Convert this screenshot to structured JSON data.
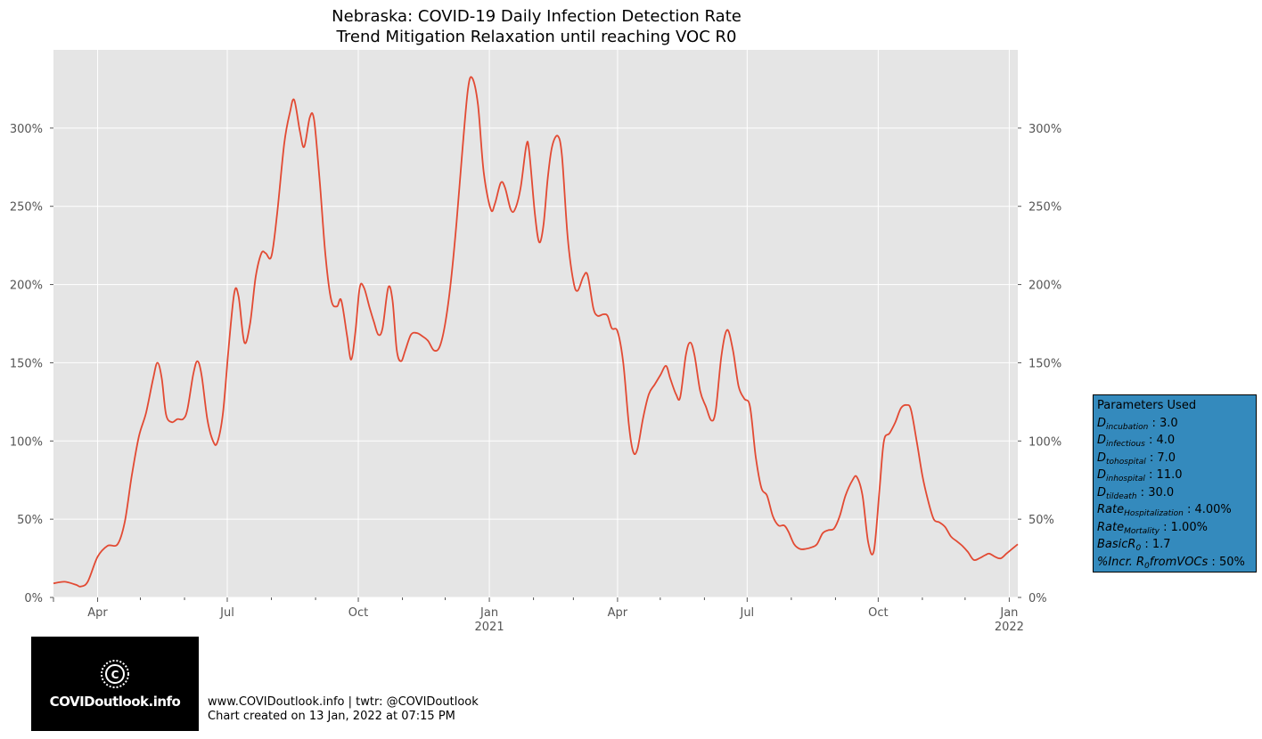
{
  "chart_data": {
    "type": "line",
    "title": "Nebraska: COVID-19 Daily Infection Detection Rate",
    "subtitle": "Trend Mitigation Relaxation until reaching VOC R0",
    "ylim": [
      0,
      3.5
    ],
    "y_ticks": [
      {
        "value": 0,
        "label": "0%"
      },
      {
        "value": 0.5,
        "label": "50%"
      },
      {
        "value": 1.0,
        "label": "100%"
      },
      {
        "value": 1.5,
        "label": "150%"
      },
      {
        "value": 2.0,
        "label": "200%"
      },
      {
        "value": 2.5,
        "label": "250%"
      },
      {
        "value": 3.0,
        "label": "300%"
      }
    ],
    "xlim": [
      "2020-03-01",
      "2022-01-07"
    ],
    "x_major_ticks": [
      {
        "date": "2020-04-01",
        "label": "Apr",
        "year": ""
      },
      {
        "date": "2020-07-01",
        "label": "Jul",
        "year": ""
      },
      {
        "date": "2020-10-01",
        "label": "Oct",
        "year": ""
      },
      {
        "date": "2021-01-01",
        "label": "Jan",
        "year": "2021"
      },
      {
        "date": "2021-04-01",
        "label": "Apr",
        "year": ""
      },
      {
        "date": "2021-07-01",
        "label": "Jul",
        "year": ""
      },
      {
        "date": "2021-10-01",
        "label": "Oct",
        "year": ""
      },
      {
        "date": "2022-01-01",
        "label": "Jan",
        "year": "2022"
      }
    ],
    "x_minor_ticks": [
      "2020-05-01",
      "2020-06-01",
      "2020-08-01",
      "2020-09-01",
      "2020-11-01",
      "2020-12-01",
      "2021-02-01",
      "2021-03-01",
      "2021-05-01",
      "2021-06-01",
      "2021-08-01",
      "2021-09-01",
      "2021-11-01",
      "2021-12-01"
    ],
    "grid": true,
    "series": [
      {
        "color": "#e24a33",
        "points": [
          [
            "2020-03-01",
            0.09
          ],
          [
            "2020-03-09",
            0.1
          ],
          [
            "2020-03-17",
            0.08
          ],
          [
            "2020-03-20",
            0.07
          ],
          [
            "2020-03-25",
            0.1
          ],
          [
            "2020-04-01",
            0.26
          ],
          [
            "2020-04-08",
            0.33
          ],
          [
            "2020-04-15",
            0.34
          ],
          [
            "2020-04-20",
            0.48
          ],
          [
            "2020-04-25",
            0.78
          ],
          [
            "2020-04-30",
            1.03
          ],
          [
            "2020-05-05",
            1.18
          ],
          [
            "2020-05-10",
            1.4
          ],
          [
            "2020-05-13",
            1.5
          ],
          [
            "2020-05-16",
            1.4
          ],
          [
            "2020-05-19",
            1.17
          ],
          [
            "2020-05-23",
            1.12
          ],
          [
            "2020-05-27",
            1.14
          ],
          [
            "2020-05-31",
            1.14
          ],
          [
            "2020-06-03",
            1.2
          ],
          [
            "2020-06-07",
            1.42
          ],
          [
            "2020-06-10",
            1.51
          ],
          [
            "2020-06-13",
            1.42
          ],
          [
            "2020-06-17",
            1.14
          ],
          [
            "2020-06-21",
            1.0
          ],
          [
            "2020-06-24",
            0.99
          ],
          [
            "2020-06-28",
            1.18
          ],
          [
            "2020-07-02",
            1.6
          ],
          [
            "2020-07-06",
            1.95
          ],
          [
            "2020-07-09",
            1.92
          ],
          [
            "2020-07-13",
            1.63
          ],
          [
            "2020-07-17",
            1.75
          ],
          [
            "2020-07-21",
            2.05
          ],
          [
            "2020-07-25",
            2.2
          ],
          [
            "2020-07-28",
            2.2
          ],
          [
            "2020-08-01",
            2.18
          ],
          [
            "2020-08-05",
            2.45
          ],
          [
            "2020-08-10",
            2.9
          ],
          [
            "2020-08-14",
            3.1
          ],
          [
            "2020-08-17",
            3.18
          ],
          [
            "2020-08-21",
            2.98
          ],
          [
            "2020-08-24",
            2.88
          ],
          [
            "2020-08-28",
            3.07
          ],
          [
            "2020-08-31",
            3.05
          ],
          [
            "2020-09-04",
            2.65
          ],
          [
            "2020-09-08",
            2.18
          ],
          [
            "2020-09-12",
            1.9
          ],
          [
            "2020-09-16",
            1.86
          ],
          [
            "2020-09-19",
            1.9
          ],
          [
            "2020-09-23",
            1.68
          ],
          [
            "2020-09-26",
            1.52
          ],
          [
            "2020-09-29",
            1.7
          ],
          [
            "2020-10-02",
            1.98
          ],
          [
            "2020-10-05",
            1.98
          ],
          [
            "2020-10-09",
            1.85
          ],
          [
            "2020-10-12",
            1.76
          ],
          [
            "2020-10-15",
            1.68
          ],
          [
            "2020-10-18",
            1.72
          ],
          [
            "2020-10-22",
            1.98
          ],
          [
            "2020-10-25",
            1.9
          ],
          [
            "2020-10-28",
            1.58
          ],
          [
            "2020-10-31",
            1.51
          ],
          [
            "2020-11-03",
            1.58
          ],
          [
            "2020-11-07",
            1.68
          ],
          [
            "2020-11-11",
            1.69
          ],
          [
            "2020-11-15",
            1.67
          ],
          [
            "2020-11-19",
            1.64
          ],
          [
            "2020-11-23",
            1.58
          ],
          [
            "2020-11-27",
            1.6
          ],
          [
            "2020-12-01",
            1.75
          ],
          [
            "2020-12-05",
            2.02
          ],
          [
            "2020-12-09",
            2.4
          ],
          [
            "2020-12-13",
            2.85
          ],
          [
            "2020-12-17",
            3.25
          ],
          [
            "2020-12-20",
            3.32
          ],
          [
            "2020-12-24",
            3.15
          ],
          [
            "2020-12-28",
            2.72
          ],
          [
            "2021-01-02",
            2.48
          ],
          [
            "2021-01-05",
            2.52
          ],
          [
            "2021-01-09",
            2.65
          ],
          [
            "2021-01-12",
            2.62
          ],
          [
            "2021-01-16",
            2.48
          ],
          [
            "2021-01-19",
            2.48
          ],
          [
            "2021-01-23",
            2.62
          ],
          [
            "2021-01-27",
            2.89
          ],
          [
            "2021-01-29",
            2.85
          ],
          [
            "2021-02-02",
            2.45
          ],
          [
            "2021-02-05",
            2.27
          ],
          [
            "2021-02-08",
            2.38
          ],
          [
            "2021-02-11",
            2.68
          ],
          [
            "2021-02-14",
            2.88
          ],
          [
            "2021-02-18",
            2.95
          ],
          [
            "2021-02-21",
            2.82
          ],
          [
            "2021-02-25",
            2.3
          ],
          [
            "2021-03-01",
            2.02
          ],
          [
            "2021-03-04",
            1.96
          ],
          [
            "2021-03-08",
            2.05
          ],
          [
            "2021-03-11",
            2.06
          ],
          [
            "2021-03-15",
            1.85
          ],
          [
            "2021-03-18",
            1.8
          ],
          [
            "2021-03-22",
            1.81
          ],
          [
            "2021-03-25",
            1.8
          ],
          [
            "2021-03-28",
            1.72
          ],
          [
            "2021-04-01",
            1.7
          ],
          [
            "2021-04-05",
            1.5
          ],
          [
            "2021-04-09",
            1.1
          ],
          [
            "2021-04-12",
            0.93
          ],
          [
            "2021-04-15",
            0.95
          ],
          [
            "2021-04-19",
            1.15
          ],
          [
            "2021-04-23",
            1.3
          ],
          [
            "2021-04-27",
            1.36
          ],
          [
            "2021-05-01",
            1.42
          ],
          [
            "2021-05-05",
            1.48
          ],
          [
            "2021-05-08",
            1.4
          ],
          [
            "2021-05-12",
            1.3
          ],
          [
            "2021-05-15",
            1.28
          ],
          [
            "2021-05-19",
            1.55
          ],
          [
            "2021-05-22",
            1.63
          ],
          [
            "2021-05-25",
            1.55
          ],
          [
            "2021-05-29",
            1.32
          ],
          [
            "2021-06-02",
            1.22
          ],
          [
            "2021-06-06",
            1.13
          ],
          [
            "2021-06-09",
            1.2
          ],
          [
            "2021-06-13",
            1.55
          ],
          [
            "2021-06-17",
            1.71
          ],
          [
            "2021-06-21",
            1.58
          ],
          [
            "2021-06-25",
            1.35
          ],
          [
            "2021-06-29",
            1.27
          ],
          [
            "2021-07-03",
            1.22
          ],
          [
            "2021-07-07",
            0.9
          ],
          [
            "2021-07-11",
            0.7
          ],
          [
            "2021-07-15",
            0.65
          ],
          [
            "2021-07-19",
            0.52
          ],
          [
            "2021-07-23",
            0.46
          ],
          [
            "2021-07-27",
            0.46
          ],
          [
            "2021-07-30",
            0.42
          ],
          [
            "2021-08-03",
            0.34
          ],
          [
            "2021-08-07",
            0.31
          ],
          [
            "2021-08-11",
            0.31
          ],
          [
            "2021-08-15",
            0.32
          ],
          [
            "2021-08-19",
            0.34
          ],
          [
            "2021-08-23",
            0.41
          ],
          [
            "2021-08-27",
            0.43
          ],
          [
            "2021-08-31",
            0.44
          ],
          [
            "2021-09-04",
            0.52
          ],
          [
            "2021-09-08",
            0.65
          ],
          [
            "2021-09-13",
            0.75
          ],
          [
            "2021-09-16",
            0.77
          ],
          [
            "2021-09-20",
            0.65
          ],
          [
            "2021-09-24",
            0.35
          ],
          [
            "2021-09-28",
            0.3
          ],
          [
            "2021-10-02",
            0.7
          ],
          [
            "2021-10-05",
            1.0
          ],
          [
            "2021-10-09",
            1.05
          ],
          [
            "2021-10-13",
            1.12
          ],
          [
            "2021-10-17",
            1.21
          ],
          [
            "2021-10-21",
            1.23
          ],
          [
            "2021-10-24",
            1.2
          ],
          [
            "2021-10-28",
            1.0
          ],
          [
            "2021-11-01",
            0.78
          ],
          [
            "2021-11-05",
            0.62
          ],
          [
            "2021-11-09",
            0.5
          ],
          [
            "2021-11-13",
            0.48
          ],
          [
            "2021-11-17",
            0.45
          ],
          [
            "2021-11-21",
            0.39
          ],
          [
            "2021-11-25",
            0.36
          ],
          [
            "2021-11-29",
            0.33
          ],
          [
            "2021-12-03",
            0.29
          ],
          [
            "2021-12-07",
            0.24
          ],
          [
            "2021-12-11",
            0.25
          ],
          [
            "2021-12-15",
            0.27
          ],
          [
            "2021-12-18",
            0.28
          ],
          [
            "2021-12-22",
            0.26
          ],
          [
            "2021-12-26",
            0.25
          ],
          [
            "2021-12-30",
            0.28
          ],
          [
            "2022-01-03",
            0.31
          ],
          [
            "2022-01-07",
            0.34
          ]
        ]
      }
    ]
  },
  "parameters": {
    "heading": "Parameters Used",
    "rows": [
      {
        "name": "D",
        "sub": "incubation",
        "value": "3.0"
      },
      {
        "name": "D",
        "sub": "infectious",
        "value": "4.0"
      },
      {
        "name": "D",
        "sub": "tohospital",
        "value": "7.0"
      },
      {
        "name": "D",
        "sub": "inhospital",
        "value": "11.0"
      },
      {
        "name": "D",
        "sub": "tildeath",
        "value": "30.0"
      },
      {
        "name": "Rate",
        "sub": "Hospitalization",
        "value": "4.00%"
      },
      {
        "name": "Rate",
        "sub": "Mortality",
        "value": "1.00%"
      },
      {
        "name": "BasicR",
        "sub": "0",
        "value": "1.7"
      },
      {
        "name": "%Incr. R",
        "sub": "0",
        "name2": "fromVOCs",
        "value": "50%"
      }
    ]
  },
  "logo": {
    "text": "COVIDoutlook.info"
  },
  "footer": {
    "line1": "www.COVIDoutlook.info | twtr: @COVIDoutlook",
    "line2": "Chart created on 13 Jan, 2022 at 07:15 PM"
  }
}
